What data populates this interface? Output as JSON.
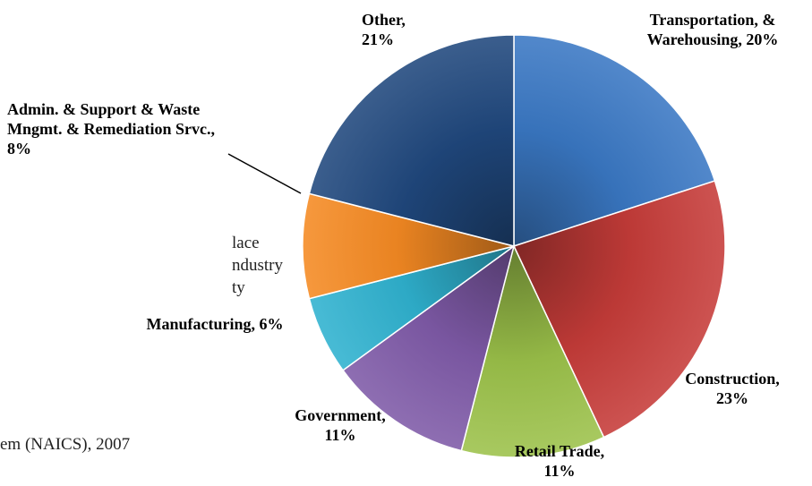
{
  "side_text": {
    "line1": "lace",
    "line2": "ndustry",
    "line3": "ty",
    "footer": "em (NAICS), 2007"
  },
  "colors": {
    "background": "#ffffff",
    "slice_transportation": "#3a78c4",
    "slice_construction": "#c63c39",
    "slice_retail": "#9cc24a",
    "slice_government": "#7f5aa8",
    "slice_manufacturing": "#2fb2cf",
    "slice_admin": "#f58a23",
    "slice_other": "#20487d"
  },
  "chart_data": {
    "type": "pie",
    "title": "",
    "start_at_top": true,
    "direction": "clockwise",
    "slices": [
      {
        "label_lines": [
          "Transportation, &",
          "Warehousing, 20%"
        ],
        "category": "Transportation, & Warehousing",
        "value": 20,
        "color": "#3a78c4"
      },
      {
        "label_lines": [
          "Construction,",
          "23%"
        ],
        "category": "Construction",
        "value": 23,
        "color": "#c63c39"
      },
      {
        "label_lines": [
          "Retail Trade,",
          "11%"
        ],
        "category": "Retail Trade",
        "value": 11,
        "color": "#9cc24a"
      },
      {
        "label_lines": [
          "Government,",
          "11%"
        ],
        "category": "Government",
        "value": 11,
        "color": "#7f5aa8"
      },
      {
        "label_lines": [
          "Manufacturing, 6%"
        ],
        "category": "Manufacturing",
        "value": 6,
        "color": "#2fb2cf"
      },
      {
        "label_lines": [
          "Admin. & Support & Waste",
          "Mngmt. & Remediation Srvc.,",
          "8%"
        ],
        "category": "Admin. & Support & Waste Mngmt. & Remediation Srvc.",
        "value": 8,
        "color": "#f58a23"
      },
      {
        "label_lines": [
          "Other,",
          "21%"
        ],
        "category": "Other",
        "value": 21,
        "color": "#20487d"
      }
    ]
  }
}
